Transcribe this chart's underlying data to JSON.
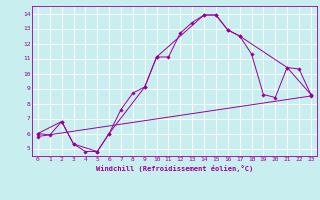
{
  "xlabel": "Windchill (Refroidissement éolien,°C)",
  "xlim": [
    -0.5,
    23.5
  ],
  "ylim": [
    4.5,
    14.5
  ],
  "xticks": [
    0,
    1,
    2,
    3,
    4,
    5,
    6,
    7,
    8,
    9,
    10,
    11,
    12,
    13,
    14,
    15,
    16,
    17,
    18,
    19,
    20,
    21,
    22,
    23
  ],
  "yticks": [
    5,
    6,
    7,
    8,
    9,
    10,
    11,
    12,
    13,
    14
  ],
  "bg_color": "#c8eef0",
  "line_color": "#990099",
  "grid_color": "#ffffff",
  "curve1_x": [
    0,
    1,
    2,
    3,
    4,
    5,
    6,
    7,
    8,
    9,
    10,
    11,
    12,
    13,
    14,
    15,
    16,
    17,
    18,
    19,
    20,
    21,
    22,
    23
  ],
  "curve1_y": [
    6.0,
    5.9,
    6.8,
    5.3,
    4.8,
    4.8,
    6.0,
    7.6,
    8.7,
    9.1,
    11.1,
    11.1,
    12.7,
    13.4,
    13.9,
    13.9,
    12.9,
    12.5,
    11.3,
    8.6,
    8.4,
    10.4,
    10.3,
    8.6
  ],
  "curve2_x": [
    0,
    2,
    3,
    5,
    6,
    9,
    10,
    14,
    15,
    16,
    17,
    21,
    23
  ],
  "curve2_y": [
    6.0,
    6.8,
    5.3,
    4.8,
    6.0,
    9.1,
    11.1,
    13.9,
    13.9,
    12.9,
    12.5,
    10.4,
    8.6
  ],
  "curve3_x": [
    0,
    23
  ],
  "curve3_y": [
    5.8,
    8.5
  ]
}
